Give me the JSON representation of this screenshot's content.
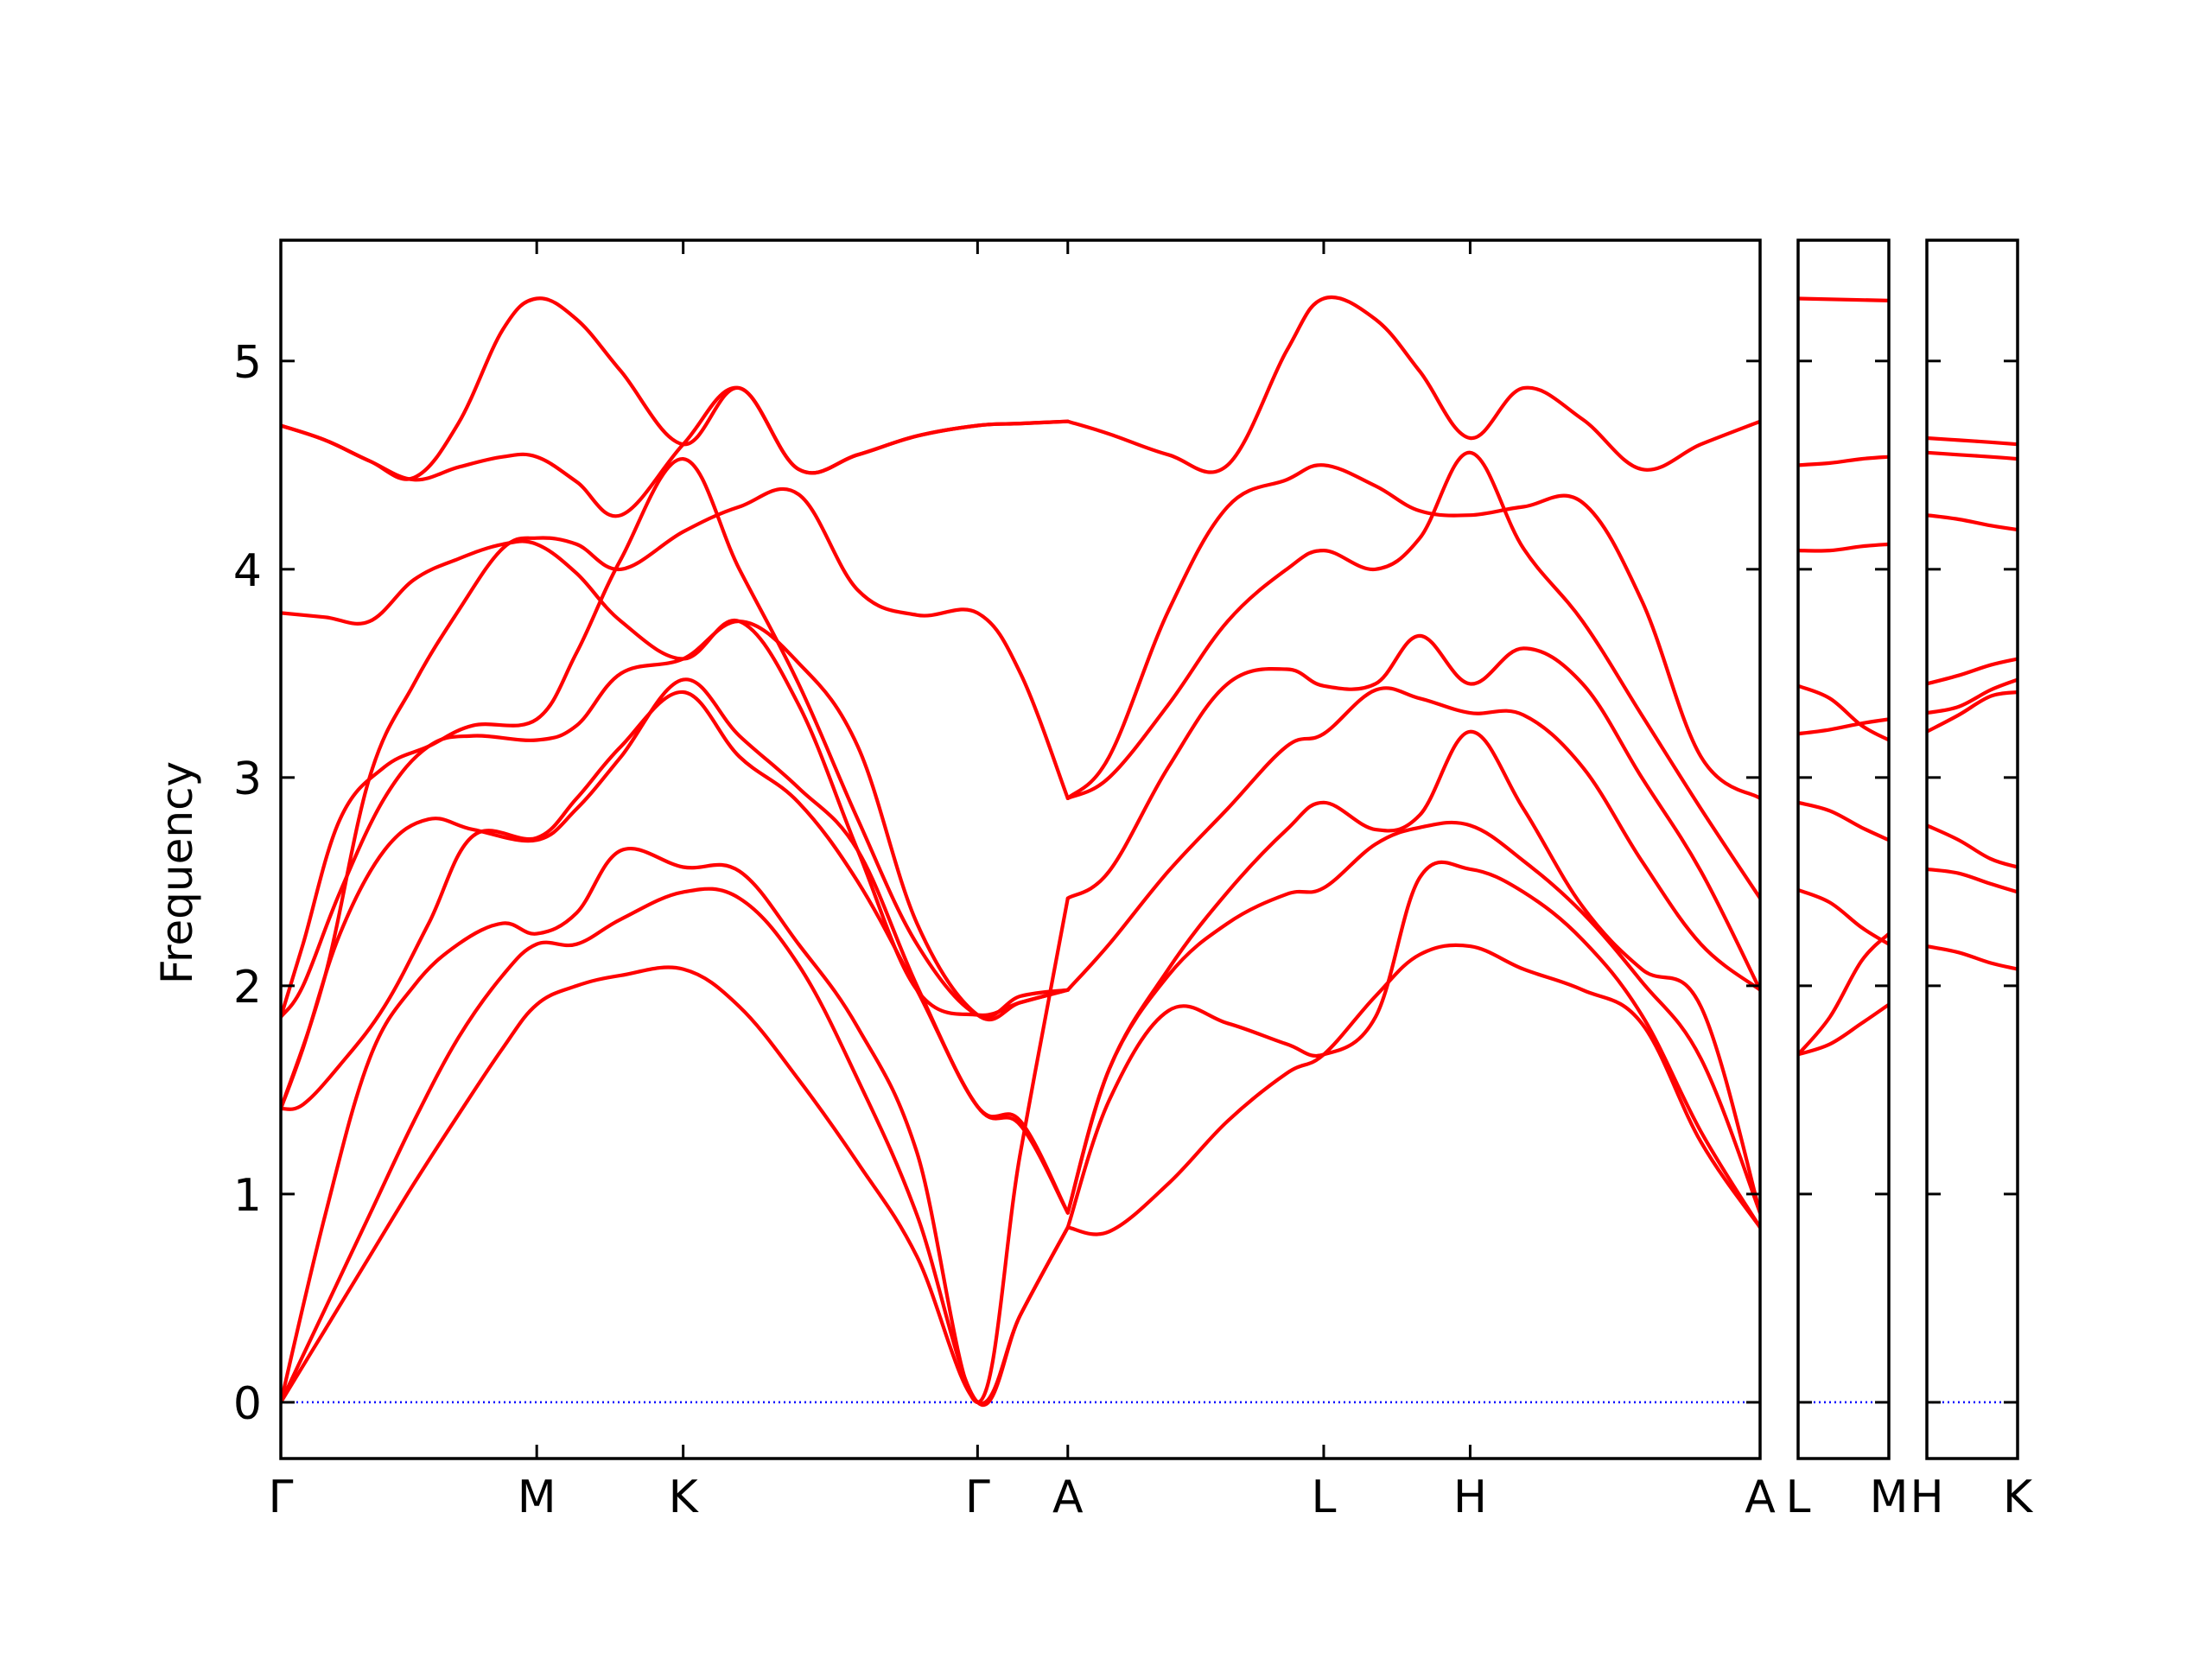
{
  "chart_data": {
    "type": "line",
    "ylabel": "Frequency",
    "ylim": [
      -0.27,
      5.58
    ],
    "yticks": [
      0,
      1,
      2,
      3,
      4,
      5
    ],
    "line_color": "#ff0000",
    "zero_line_color": "#0000ff",
    "panels": [
      {
        "xlim": [
          0,
          10
        ],
        "xtick_labels": [
          {
            "label": "Γ",
            "x": 0
          },
          {
            "label": "M",
            "x": 1.73
          },
          {
            "label": "K",
            "x": 2.72
          },
          {
            "label": "Γ",
            "x": 4.71
          },
          {
            "label": "A",
            "x": 5.32
          },
          {
            "label": "L",
            "x": 7.05
          },
          {
            "label": "H",
            "x": 8.04
          },
          {
            "label": "A",
            "x": 10
          }
        ],
        "bands": [
          {
            "x": [
              0,
              0.3,
              0.6,
              0.9,
              1.2,
              1.5,
              1.73,
              2.0,
              2.3,
              2.72,
              3.1,
              3.5,
              3.9,
              4.3,
              4.71,
              5.0,
              5.32
            ],
            "y": [
              0,
              0.35,
              0.7,
              1.05,
              1.38,
              1.7,
              1.91,
              2.0,
              2.05,
              2.08,
              1.9,
              1.55,
              1.15,
              0.7,
              0,
              0.42,
              0.84
            ]
          },
          {
            "x": [
              0,
              0.3,
              0.6,
              0.9,
              1.2,
              1.5,
              1.73,
              2.0,
              2.3,
              2.72,
              3.1,
              3.5,
              3.9,
              4.3,
              4.71,
              5.0,
              5.32
            ],
            "y": [
              0,
              0.45,
              0.9,
              1.35,
              1.75,
              2.05,
              2.2,
              2.2,
              2.32,
              2.45,
              2.42,
              2.1,
              1.55,
              0.9,
              0,
              0.42,
              0.84
            ]
          },
          {
            "x": [
              0,
              0.3,
              0.6,
              0.9,
              1.2,
              1.5,
              1.73,
              2.0,
              2.3,
              2.72,
              3.1,
              3.5,
              3.9,
              4.3,
              4.71,
              5.0,
              5.32
            ],
            "y": [
              0,
              0.9,
              1.65,
              2.0,
              2.2,
              2.3,
              2.25,
              2.35,
              2.65,
              2.57,
              2.55,
              2.2,
              1.8,
              1.2,
              0,
              1.2,
              2.42
            ]
          },
          {
            "x": [
              0,
              0.15,
              0.4,
              0.7,
              1.0,
              1.3,
              1.73,
              2.0,
              2.3,
              2.72,
              3.1,
              3.5,
              3.9,
              4.3,
              4.71,
              5.0,
              5.32
            ],
            "y": [
              1.41,
              1.43,
              1.62,
              1.9,
              2.3,
              2.72,
              2.71,
              2.9,
              3.15,
              3.41,
              3.1,
              2.88,
              2.5,
              1.98,
              1.42,
              1.35,
              0.91
            ]
          },
          {
            "x": [
              0,
              0.15,
              0.4,
              0.7,
              1.0,
              1.3,
              1.73,
              2.0,
              2.3,
              2.72,
              3.1,
              3.5,
              3.9,
              4.3,
              4.71,
              5.0,
              5.32
            ],
            "y": [
              1.41,
              1.7,
              2.25,
              2.65,
              2.8,
              2.75,
              2.7,
              2.85,
              3.1,
              3.47,
              3.2,
              2.95,
              2.65,
              2.0,
              1.42,
              1.33,
              0.91
            ]
          },
          {
            "x": [
              0,
              0.15,
              0.4,
              0.7,
              1.0,
              1.3,
              1.73,
              2.0,
              2.3,
              2.72,
              3.1,
              3.5,
              3.9,
              4.3,
              4.71,
              5.0,
              5.32
            ],
            "y": [
              1.85,
              2.0,
              2.45,
              2.9,
              3.15,
              3.2,
              3.18,
              3.25,
              3.5,
              3.57,
              3.75,
              3.55,
              3.15,
              2.3,
              1.86,
              1.92,
              1.98
            ]
          },
          {
            "x": [
              0,
              0.15,
              0.4,
              0.7,
              1.0,
              1.3,
              1.73,
              2.0,
              2.3,
              2.72,
              3.1,
              3.5,
              3.9,
              4.3,
              4.71,
              5.0,
              5.32
            ],
            "y": [
              1.85,
              2.2,
              2.8,
              3.05,
              3.15,
              3.25,
              3.28,
              3.6,
              4.05,
              4.53,
              4.0,
              3.45,
              2.8,
              2.2,
              1.86,
              1.95,
              1.98
            ]
          },
          {
            "x": [
              0,
              0.3,
              0.6,
              0.9,
              1.2,
              1.5,
              1.73,
              2.0,
              2.3,
              2.72,
              3.1,
              3.5,
              3.9,
              4.3,
              4.71,
              5.0,
              5.32
            ],
            "y": [
              3.79,
              3.77,
              3.75,
              3.95,
              4.05,
              4.12,
              4.12,
              3.98,
              3.75,
              3.57,
              3.75,
              3.35,
              2.65,
              1.98,
              1.86,
              1.92,
              1.98
            ]
          },
          {
            "x": [
              0,
              0.3,
              0.6,
              0.9,
              1.2,
              1.5,
              1.73,
              2.0,
              2.3,
              2.72,
              3.1,
              3.5,
              3.9,
              4.3,
              4.71,
              5.0,
              5.32
            ],
            "y": [
              1.41,
              2.05,
              3.0,
              3.45,
              3.8,
              4.1,
              4.15,
              4.12,
              4.0,
              4.18,
              4.3,
              4.36,
              3.9,
              3.78,
              3.79,
              3.5,
              2.9
            ]
          },
          {
            "x": [
              0,
              0.3,
              0.6,
              0.9,
              1.2,
              1.5,
              1.73,
              2.0,
              2.3,
              2.72,
              3.1,
              3.5,
              3.9,
              4.3,
              4.71,
              5.0,
              5.32
            ],
            "y": [
              4.69,
              4.62,
              4.52,
              4.43,
              4.49,
              4.54,
              4.54,
              4.42,
              4.26,
              4.6,
              4.87,
              4.48,
              4.55,
              4.64,
              4.69,
              4.7,
              4.71
            ]
          },
          {
            "x": [
              0,
              0.3,
              0.6,
              0.9,
              1.2,
              1.5,
              1.73,
              2.0,
              2.3,
              2.72,
              3.1,
              3.5,
              3.9,
              4.3,
              4.71,
              5.0,
              5.32
            ],
            "y": [
              4.69,
              4.62,
              4.52,
              4.44,
              4.7,
              5.15,
              5.3,
              5.2,
              4.95,
              4.6,
              4.87,
              4.48,
              4.55,
              4.64,
              4.69,
              4.7,
              4.71
            ]
          },
          {
            "x": [
              5.32,
              5.6,
              6.0,
              6.4,
              6.8,
              7.05,
              7.4,
              7.7,
              8.04,
              8.4,
              8.8,
              9.2,
              9.6,
              10
            ],
            "y": [
              0.84,
              0.82,
              1.05,
              1.35,
              1.58,
              1.67,
              1.95,
              2.15,
              2.19,
              2.08,
              1.98,
              1.82,
              1.25,
              0.84
            ]
          },
          {
            "x": [
              5.32,
              5.6,
              6.0,
              6.4,
              6.8,
              7.05,
              7.4,
              7.7,
              8.04,
              8.4,
              8.8,
              9.2,
              9.6,
              10
            ],
            "y": [
              0.84,
              1.45,
              1.88,
              1.82,
              1.72,
              1.67,
              1.85,
              2.52,
              2.56,
              2.45,
              2.22,
              1.86,
              1.3,
              0.84
            ]
          },
          {
            "x": [
              5.32,
              5.6,
              6.0,
              6.4,
              6.8,
              7.05,
              7.4,
              7.7,
              8.04,
              8.4,
              8.8,
              9.2,
              9.6,
              10
            ],
            "y": [
              0.91,
              1.6,
              2.05,
              2.3,
              2.44,
              2.47,
              2.68,
              2.76,
              2.77,
              2.6,
              2.35,
              2.02,
              1.65,
              0.91
            ]
          },
          {
            "x": [
              5.32,
              5.6,
              6.0,
              6.4,
              6.8,
              7.05,
              7.4,
              7.7,
              8.04,
              8.4,
              8.8,
              9.2,
              9.6,
              10
            ],
            "y": [
              0.91,
              1.6,
              2.08,
              2.45,
              2.75,
              2.88,
              2.75,
              2.82,
              3.22,
              2.85,
              2.38,
              2.08,
              1.9,
              0.91
            ]
          },
          {
            "x": [
              5.32,
              5.6,
              6.0,
              6.4,
              6.8,
              7.05,
              7.4,
              7.7,
              8.04,
              8.4,
              8.8,
              9.2,
              9.6,
              10
            ],
            "y": [
              1.98,
              2.2,
              2.55,
              2.85,
              3.15,
              3.21,
              3.42,
              3.38,
              3.31,
              3.3,
              3.05,
              2.6,
              2.2,
              1.98
            ]
          },
          {
            "x": [
              5.32,
              5.6,
              6.0,
              6.4,
              6.8,
              7.05,
              7.4,
              7.7,
              8.04,
              8.4,
              8.8,
              9.2,
              9.6,
              10
            ],
            "y": [
              2.42,
              2.55,
              3.05,
              3.45,
              3.52,
              3.44,
              3.45,
              3.68,
              3.45,
              3.62,
              3.45,
              3.0,
              2.55,
              1.98
            ]
          },
          {
            "x": [
              5.32,
              5.6,
              6.0,
              6.4,
              6.8,
              7.05,
              7.4,
              7.7,
              8.04,
              8.4,
              8.8,
              9.2,
              9.6,
              10
            ],
            "y": [
              2.9,
              3.0,
              3.35,
              3.75,
              4.0,
              4.09,
              4.0,
              4.15,
              4.56,
              4.1,
              3.75,
              3.3,
              2.85,
              2.42
            ]
          },
          {
            "x": [
              5.32,
              5.6,
              6.0,
              6.4,
              6.8,
              7.05,
              7.4,
              7.7,
              8.04,
              8.4,
              8.8,
              9.2,
              9.6,
              10
            ],
            "y": [
              2.9,
              3.1,
              3.8,
              4.3,
              4.43,
              4.5,
              4.4,
              4.28,
              4.26,
              4.3,
              4.32,
              3.85,
              3.1,
              2.9
            ]
          },
          {
            "x": [
              5.32,
              5.6,
              6.0,
              6.4,
              6.8,
              7.05,
              7.4,
              7.7,
              8.04,
              8.4,
              8.8,
              9.2,
              9.6,
              10
            ],
            "y": [
              4.71,
              4.65,
              4.55,
              4.5,
              5.05,
              5.3,
              5.2,
              4.95,
              4.63,
              4.87,
              4.72,
              4.48,
              4.6,
              4.71
            ]
          }
        ]
      },
      {
        "xlim": [
          0,
          1
        ],
        "xtick_labels": [
          {
            "label": "L",
            "x": 0
          },
          {
            "label": "M",
            "x": 1
          }
        ],
        "bands": [
          {
            "x": [
              0,
              0.35,
              0.7,
              1
            ],
            "y": [
              1.67,
              1.72,
              1.82,
              1.91
            ]
          },
          {
            "x": [
              0,
              0.35,
              0.7,
              1
            ],
            "y": [
              1.67,
              1.85,
              2.12,
              2.25
            ]
          },
          {
            "x": [
              0,
              0.35,
              0.7,
              1
            ],
            "y": [
              2.46,
              2.4,
              2.28,
              2.2
            ]
          },
          {
            "x": [
              0,
              0.35,
              0.7,
              1
            ],
            "y": [
              2.88,
              2.84,
              2.76,
              2.7
            ]
          },
          {
            "x": [
              0,
              0.35,
              0.7,
              1
            ],
            "y": [
              3.21,
              3.23,
              3.26,
              3.28
            ]
          },
          {
            "x": [
              0,
              0.35,
              0.7,
              1
            ],
            "y": [
              3.44,
              3.38,
              3.25,
              3.18
            ]
          },
          {
            "x": [
              0,
              0.35,
              0.7,
              1
            ],
            "y": [
              4.09,
              4.09,
              4.11,
              4.12
            ]
          },
          {
            "x": [
              0,
              0.35,
              0.7,
              1
            ],
            "y": [
              4.5,
              4.51,
              4.53,
              4.54
            ]
          },
          {
            "x": [
              0,
              1
            ],
            "y": [
              5.3,
              5.29
            ]
          }
        ]
      },
      {
        "xlim": [
          0,
          1
        ],
        "xtick_labels": [
          {
            "label": "H",
            "x": 0
          },
          {
            "label": "K",
            "x": 1
          }
        ],
        "bands": [
          {
            "x": [
              0,
              0.35,
              0.7,
              1
            ],
            "y": [
              2.19,
              2.16,
              2.11,
              2.08
            ]
          },
          {
            "x": [
              0,
              0.35,
              0.7,
              1
            ],
            "y": [
              2.56,
              2.54,
              2.49,
              2.45
            ]
          },
          {
            "x": [
              0,
              0.35,
              0.7,
              1
            ],
            "y": [
              2.77,
              2.7,
              2.61,
              2.57
            ]
          },
          {
            "x": [
              0,
              0.35,
              0.7,
              1
            ],
            "y": [
              3.22,
              3.3,
              3.39,
              3.41
            ]
          },
          {
            "x": [
              0,
              0.35,
              0.7,
              1
            ],
            "y": [
              3.31,
              3.34,
              3.42,
              3.47
            ]
          },
          {
            "x": [
              0,
              0.35,
              0.7,
              1
            ],
            "y": [
              3.45,
              3.49,
              3.54,
              3.57
            ]
          },
          {
            "x": [
              0,
              0.35,
              0.7,
              1
            ],
            "y": [
              4.26,
              4.24,
              4.21,
              4.19
            ]
          },
          {
            "x": [
              0,
              0.35,
              0.7,
              1
            ],
            "y": [
              4.56,
              4.55,
              4.54,
              4.53
            ]
          },
          {
            "x": [
              0,
              0.35,
              0.7,
              1
            ],
            "y": [
              4.63,
              4.62,
              4.61,
              4.6
            ]
          }
        ]
      }
    ]
  }
}
